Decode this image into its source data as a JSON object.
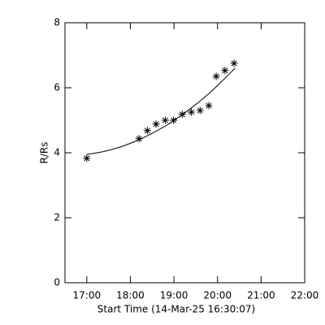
{
  "chart_data": {
    "type": "scatter",
    "xlabel": "Start Time (14-Mar-25 16:30:07)",
    "ylabel": "R/Rs",
    "xlim": [
      16.5,
      22.0
    ],
    "xticks": [
      {
        "value": 17,
        "label": "17:00"
      },
      {
        "value": 18,
        "label": "18:00"
      },
      {
        "value": 19,
        "label": "19:00"
      },
      {
        "value": 20,
        "label": "20:00"
      },
      {
        "value": 21,
        "label": "21:00"
      },
      {
        "value": 22,
        "label": "22:00"
      }
    ],
    "ylim": [
      0,
      8
    ],
    "yticks": [
      0,
      2,
      4,
      6,
      8
    ],
    "series": [
      {
        "mode": "markers",
        "marker": "asterisk",
        "color": "#000000",
        "x": [
          17.0,
          18.2,
          18.39,
          18.59,
          18.8,
          18.99,
          19.19,
          19.4,
          19.6,
          19.8,
          19.97,
          20.17,
          20.38
        ],
        "values": [
          3.83,
          4.43,
          4.68,
          4.88,
          5.0,
          5.0,
          5.18,
          5.25,
          5.3,
          5.45,
          6.35,
          6.53,
          6.75
        ]
      },
      {
        "mode": "line",
        "color": "#000000",
        "x": [
          17.0,
          17.2,
          17.4,
          17.6,
          17.8,
          18.0,
          18.2,
          18.4,
          18.6,
          18.8,
          19.0,
          19.2,
          19.4,
          19.6,
          19.8,
          20.0,
          20.2,
          20.4
        ],
        "values": [
          3.95,
          3.99,
          4.04,
          4.11,
          4.19,
          4.29,
          4.4,
          4.53,
          4.67,
          4.82,
          4.99,
          5.18,
          5.38,
          5.59,
          5.82,
          6.07,
          6.33,
          6.6
        ]
      }
    ]
  }
}
